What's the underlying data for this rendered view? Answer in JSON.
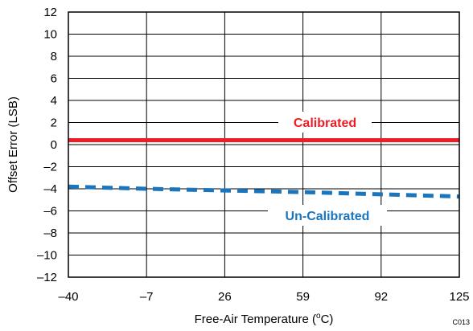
{
  "chart_data": {
    "type": "line",
    "xlabel": "Free-Air Temperature (",
    "xlabel_sup": "o",
    "xlabel_tail": "C)",
    "ylabel": "Offset Error (LSB)",
    "code": "C013",
    "xlim": [
      -40,
      125
    ],
    "ylim": [
      -12,
      12
    ],
    "x_ticks": [
      -40,
      -7,
      26,
      59,
      92,
      125
    ],
    "x_tick_labels": [
      "–40",
      "–7",
      "26",
      "59",
      "92",
      "125"
    ],
    "y_ticks": [
      12,
      10,
      8,
      6,
      4,
      2,
      0,
      -2,
      -4,
      -6,
      -8,
      -10,
      -12
    ],
    "y_tick_labels": [
      "12",
      "10",
      "8",
      "6",
      "4",
      "2",
      "0",
      "–2",
      "–4",
      "–6",
      "–8",
      "–10",
      "–12"
    ],
    "grid": true,
    "series": [
      {
        "name": "Calibrated",
        "color": "#ee1c25",
        "style": "solid",
        "x": [
          -40,
          125
        ],
        "y": [
          0.4,
          0.4
        ]
      },
      {
        "name": "Un-Calibrated",
        "color": "#1a75bc",
        "style": "dashed",
        "x": [
          -40,
          -7,
          26,
          59,
          92,
          125
        ],
        "y": [
          -3.8,
          -4.0,
          -4.15,
          -4.3,
          -4.5,
          -4.7
        ]
      }
    ]
  }
}
